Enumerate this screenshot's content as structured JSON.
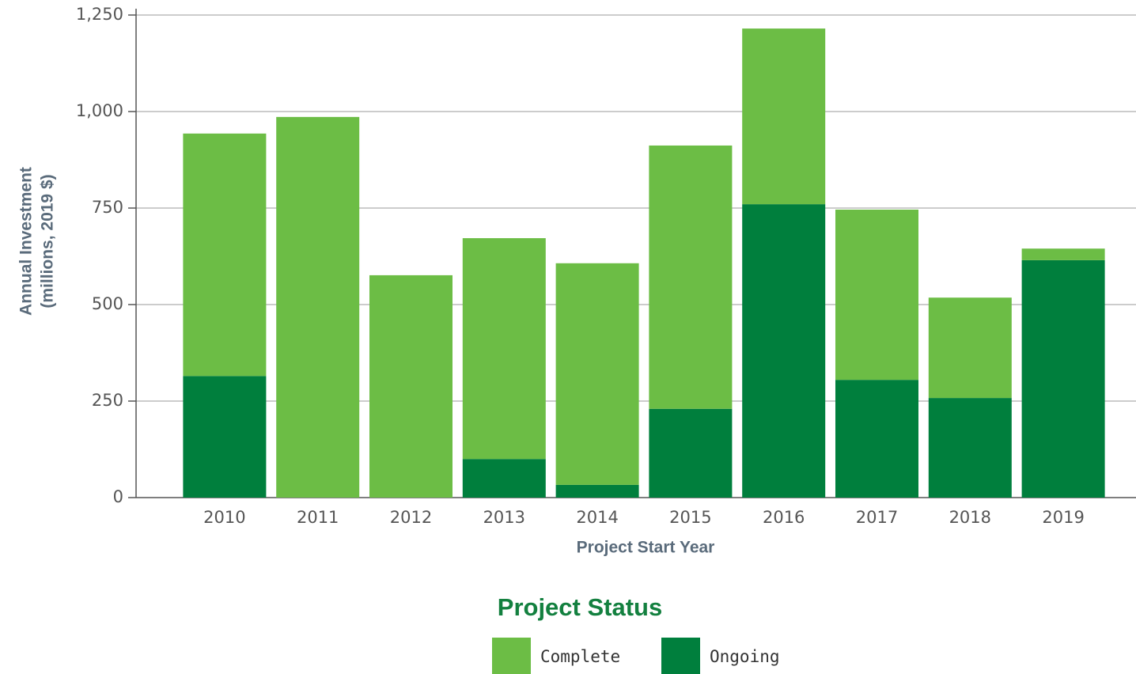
{
  "chart_data": {
    "type": "stacked_bar",
    "x_label": "Project Start Year",
    "y_label": [
      "Annual Investment",
      "(millions, 2019 $)"
    ],
    "legend_title": "Project Status",
    "categories": [
      "2010",
      "2011",
      "2012",
      "2013",
      "2014",
      "2015",
      "2016",
      "2017",
      "2018",
      "2019"
    ],
    "series": [
      {
        "name": "Complete",
        "color": "#6cbd45",
        "values": [
          628,
          986,
          576,
          572,
          574,
          682,
          455,
          441,
          260,
          30
        ]
      },
      {
        "name": "Ongoing",
        "color": "#007f3d",
        "values": [
          315,
          0,
          0,
          100,
          33,
          230,
          760,
          305,
          258,
          615
        ]
      }
    ],
    "ylim": [
      0,
      1250
    ],
    "yticks": [
      0,
      250,
      500,
      750,
      {
        "value": 1000,
        "label": "1,000"
      },
      {
        "value": 1250,
        "label": "1,250"
      }
    ],
    "grid": true
  }
}
